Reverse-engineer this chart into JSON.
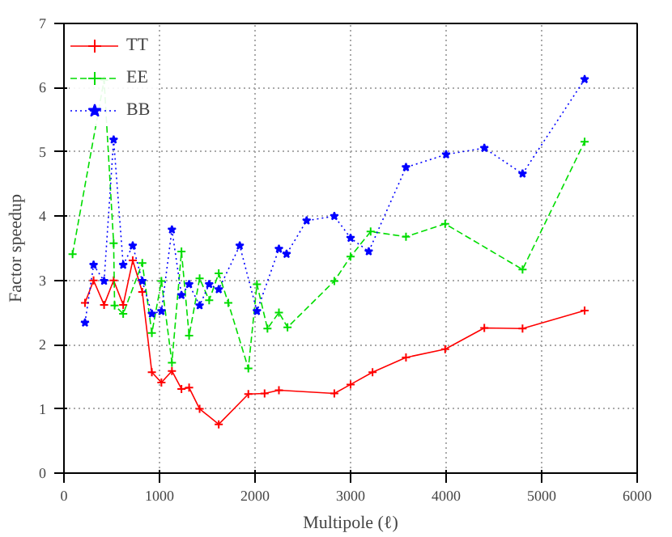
{
  "chart_data": {
    "type": "line",
    "xlabel": "Multipole (ℓ)",
    "ylabel": "Factor speedup",
    "xlim": [
      0,
      6000
    ],
    "ylim": [
      0,
      7
    ],
    "xticks": [
      0,
      1000,
      2000,
      3000,
      4000,
      5000,
      6000
    ],
    "yticks": [
      0,
      1,
      2,
      3,
      4,
      5,
      6,
      7
    ],
    "grid": true,
    "legend": "top left",
    "series": [
      {
        "name": "TT",
        "color": "#ff0000",
        "marker": "cross",
        "line_style": "solid",
        "x": [
          220,
          310,
          420,
          520,
          620,
          720,
          820,
          920,
          1020,
          1130,
          1230,
          1310,
          1420,
          1620,
          1930,
          2100,
          2250,
          2830,
          3000,
          3230,
          3580,
          3990,
          4400,
          4800,
          5450
        ],
        "values": [
          2.65,
          3.0,
          2.62,
          3.0,
          2.62,
          3.31,
          2.82,
          1.57,
          1.41,
          1.59,
          1.31,
          1.33,
          1.0,
          0.76,
          1.23,
          1.24,
          1.29,
          1.24,
          1.38,
          1.57,
          1.8,
          1.93,
          2.26,
          2.25,
          2.53
        ]
      },
      {
        "name": "EE",
        "color": "#00dd00",
        "marker": "cross",
        "line_style": "dashed",
        "x": [
          90,
          420,
          520,
          530,
          620,
          820,
          920,
          1020,
          1130,
          1230,
          1310,
          1420,
          1520,
          1620,
          1720,
          1930,
          2020,
          2130,
          2250,
          2340,
          2830,
          3000,
          3210,
          3580,
          3990,
          4800,
          5450
        ],
        "values": [
          3.41,
          6.12,
          3.58,
          2.61,
          2.48,
          3.27,
          2.18,
          2.99,
          1.72,
          3.45,
          2.14,
          3.03,
          2.69,
          3.11,
          2.65,
          1.63,
          2.94,
          2.25,
          2.5,
          2.27,
          2.99,
          3.37,
          3.76,
          3.68,
          3.88,
          3.17,
          5.16
        ]
      },
      {
        "name": "BB",
        "color": "#0000ff",
        "marker": "star",
        "line_style": "dotted",
        "x": [
          220,
          310,
          420,
          520,
          620,
          720,
          820,
          920,
          1020,
          1130,
          1230,
          1310,
          1420,
          1520,
          1620,
          1840,
          2020,
          2250,
          2330,
          2540,
          2830,
          3000,
          3190,
          3580,
          4000,
          4400,
          4800,
          5450
        ],
        "values": [
          2.34,
          3.24,
          2.99,
          5.19,
          3.24,
          3.54,
          2.99,
          2.48,
          2.52,
          3.79,
          2.77,
          2.94,
          2.61,
          2.94,
          2.86,
          3.54,
          2.52,
          3.49,
          3.41,
          3.93,
          4.0,
          3.66,
          3.45,
          4.76,
          4.96,
          5.06,
          4.66,
          6.13
        ]
      }
    ]
  }
}
